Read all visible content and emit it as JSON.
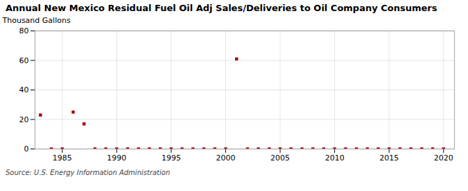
{
  "chart_data": {
    "type": "scatter",
    "title": "Annual New Mexico Residual Fuel Oil Adj Sales/Deliveries to Oil Company Consumers",
    "ylabel": "Thousand Gallons",
    "caption": "Source: U.S. Energy Information Administration",
    "x": [
      1983,
      1984,
      1985,
      1986,
      1987,
      1988,
      1989,
      1990,
      1991,
      1992,
      1993,
      1994,
      1995,
      1996,
      1997,
      1998,
      1999,
      2000,
      2001,
      2002,
      2003,
      2004,
      2005,
      2006,
      2007,
      2008,
      2009,
      2010,
      2011,
      2012,
      2013,
      2014,
      2015,
      2016,
      2017,
      2018,
      2019,
      2020
    ],
    "values": [
      23,
      0,
      0,
      25,
      17,
      0,
      0,
      0,
      0,
      0,
      0,
      0,
      0,
      0,
      0,
      0,
      0,
      0,
      61,
      0,
      0,
      0,
      0,
      0,
      0,
      0,
      0,
      0,
      0,
      0,
      0,
      0,
      0,
      0,
      0,
      0,
      0,
      0
    ],
    "color": "#aa0000",
    "marker": "square",
    "xlim": [
      1982.5,
      2021
    ],
    "ylim": [
      0,
      80
    ],
    "xticks": [
      1985,
      1990,
      1995,
      2000,
      2005,
      2010,
      2015,
      2020
    ],
    "yticks": [
      0,
      20,
      40,
      60,
      80
    ],
    "grid": true
  }
}
